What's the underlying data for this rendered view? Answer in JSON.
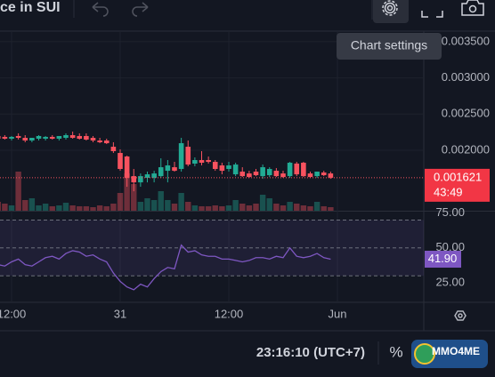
{
  "toolbar": {
    "title": "ce in SUI"
  },
  "tooltip": {
    "text": "Chart settings"
  },
  "status_bar": {
    "time": "23:16:10 (UTC+7)",
    "percent": "%",
    "logo": "MMO4ME"
  },
  "chart_data": {
    "type": "candlestick",
    "categories": [
      null,
      null,
      "12:00",
      null,
      null,
      null,
      null,
      null,
      null,
      null,
      null,
      null,
      null,
      null,
      null,
      null,
      null,
      null,
      "31",
      null,
      null,
      null,
      null,
      null,
      null,
      null,
      null,
      null,
      null,
      null,
      null,
      null,
      null,
      null,
      "12:00",
      null,
      null,
      null,
      null,
      null,
      null,
      null,
      null,
      null,
      null,
      null,
      null,
      null,
      null,
      null,
      "Jun"
    ],
    "open": [
      0.002197,
      0.002185,
      0.00216,
      0.002197,
      0.002172,
      0.002135,
      0.00216,
      0.00216,
      0.002185,
      0.00216,
      0.002172,
      0.002209,
      0.002197,
      0.002197,
      0.002172,
      0.002135,
      0.002135,
      0.002049,
      0.001963,
      0.001914,
      0.001643,
      0.001557,
      0.001619,
      0.001619,
      0.001643,
      0.001717,
      0.001766,
      0.001742,
      0.002049,
      0.001816,
      0.001865,
      0.001865,
      0.00184,
      0.001791,
      0.001742,
      0.001668,
      0.001705,
      0.00168,
      0.001705,
      0.001643,
      0.001656,
      0.001717,
      0.00168,
      0.001643,
      0.001816,
      0.001828,
      0.00168,
      0.001643,
      0.001693,
      0.00168,
      null
    ],
    "high": [
      0.002234,
      0.002209,
      0.002197,
      0.002234,
      0.002209,
      0.002172,
      0.002209,
      0.002197,
      0.002209,
      0.002197,
      0.002234,
      0.002258,
      0.002234,
      0.002234,
      0.002197,
      0.002172,
      0.00216,
      0.002111,
      0.002012,
      0.001926,
      0.001742,
      0.00168,
      0.001705,
      0.001717,
      0.001889,
      0.001865,
      0.00184,
      0.002172,
      0.002135,
      0.001902,
      0.001988,
      0.001914,
      0.001865,
      0.001828,
      0.00184,
      0.001828,
      0.001766,
      0.001717,
      0.001742,
      0.001803,
      0.001766,
      0.001754,
      0.001717,
      0.00184,
      0.00184,
      0.00184,
      0.001705,
      0.001705,
      0.001717,
      0.001705,
      null
    ],
    "low": [
      0.002135,
      0.002148,
      0.002135,
      0.002148,
      0.002111,
      0.002111,
      0.002135,
      0.002135,
      0.002148,
      0.002135,
      0.002148,
      0.00216,
      0.002148,
      0.002135,
      0.002111,
      0.002098,
      0.002086,
      0.001963,
      0.001717,
      0.001496,
      0.001434,
      0.001496,
      0.001557,
      0.001557,
      0.001619,
      0.001557,
      0.001705,
      0.001705,
      0.001779,
      0.001779,
      0.001791,
      0.001816,
      0.001717,
      0.001668,
      0.001705,
      0.001643,
      0.001631,
      0.001619,
      0.001643,
      0.001606,
      0.001631,
      0.001631,
      0.001619,
      0.001619,
      0.001643,
      0.001631,
      0.001619,
      0.001619,
      0.001643,
      0.001606,
      null
    ],
    "close": [
      0.00216,
      0.00216,
      0.002185,
      0.002172,
      0.002135,
      0.002172,
      0.002197,
      0.002185,
      0.00216,
      0.002197,
      0.002209,
      0.002172,
      0.00216,
      0.002148,
      0.002135,
      0.002111,
      0.002098,
      0.001988,
      0.001742,
      0.001619,
      0.001557,
      0.001643,
      0.001668,
      0.00168,
      0.001766,
      0.001791,
      0.001717,
      0.002098,
      0.001803,
      0.001865,
      0.001828,
      0.00184,
      0.001742,
      0.001717,
      0.001791,
      0.001803,
      0.001643,
      0.001631,
      0.001656,
      0.001766,
      0.001742,
      0.001643,
      0.001631,
      0.001828,
      0.001668,
      0.001643,
      0.001631,
      0.001705,
      0.001656,
      0.001621,
      null
    ],
    "volume": [
      10,
      8,
      6,
      44,
      12,
      14,
      6,
      8,
      5,
      6,
      9,
      6,
      5,
      5,
      4,
      6,
      5,
      8,
      20,
      42,
      30,
      10,
      14,
      12,
      22,
      12,
      8,
      20,
      10,
      6,
      5,
      5,
      6,
      5,
      6,
      12,
      8,
      6,
      8,
      18,
      14,
      8,
      6,
      10,
      8,
      6,
      5,
      10,
      5,
      4,
      null
    ],
    "rsi": [
      38,
      37,
      40,
      42,
      38,
      37,
      40,
      43,
      44,
      42,
      46,
      48,
      47,
      44,
      45,
      42,
      40,
      32,
      26,
      22,
      20,
      24,
      22,
      28,
      33,
      36,
      35,
      52,
      47,
      48,
      45,
      44,
      44,
      42,
      42,
      41,
      40,
      41,
      43,
      43,
      42,
      44,
      43,
      50,
      44,
      43,
      44,
      46,
      43,
      41.9,
      null
    ],
    "rsi_last_label": "41.90",
    "countdown": "43:49",
    "ylim": [
      0.001165,
      0.003646
    ],
    "yticks": [
      {
        "value": 0.0035,
        "label": "0.003500"
      },
      {
        "value": 0.003,
        "label": "0.003000"
      },
      {
        "value": 0.0025,
        "label": "0.002500"
      },
      {
        "value": 0.002,
        "label": "0.002000"
      }
    ],
    "rsi_ylim": [
      11,
      76
    ],
    "rsi_yticks": [
      {
        "value": 25,
        "label": "25.00"
      },
      {
        "value": 50,
        "label": "50.00"
      },
      {
        "value": 75,
        "label": "75.00"
      }
    ],
    "rsi_levels": [
      70,
      50,
      30
    ],
    "up_color": "#22ab94",
    "down_color": "#f7525f",
    "rsi_color": "#7e57c2",
    "grid": true
  }
}
